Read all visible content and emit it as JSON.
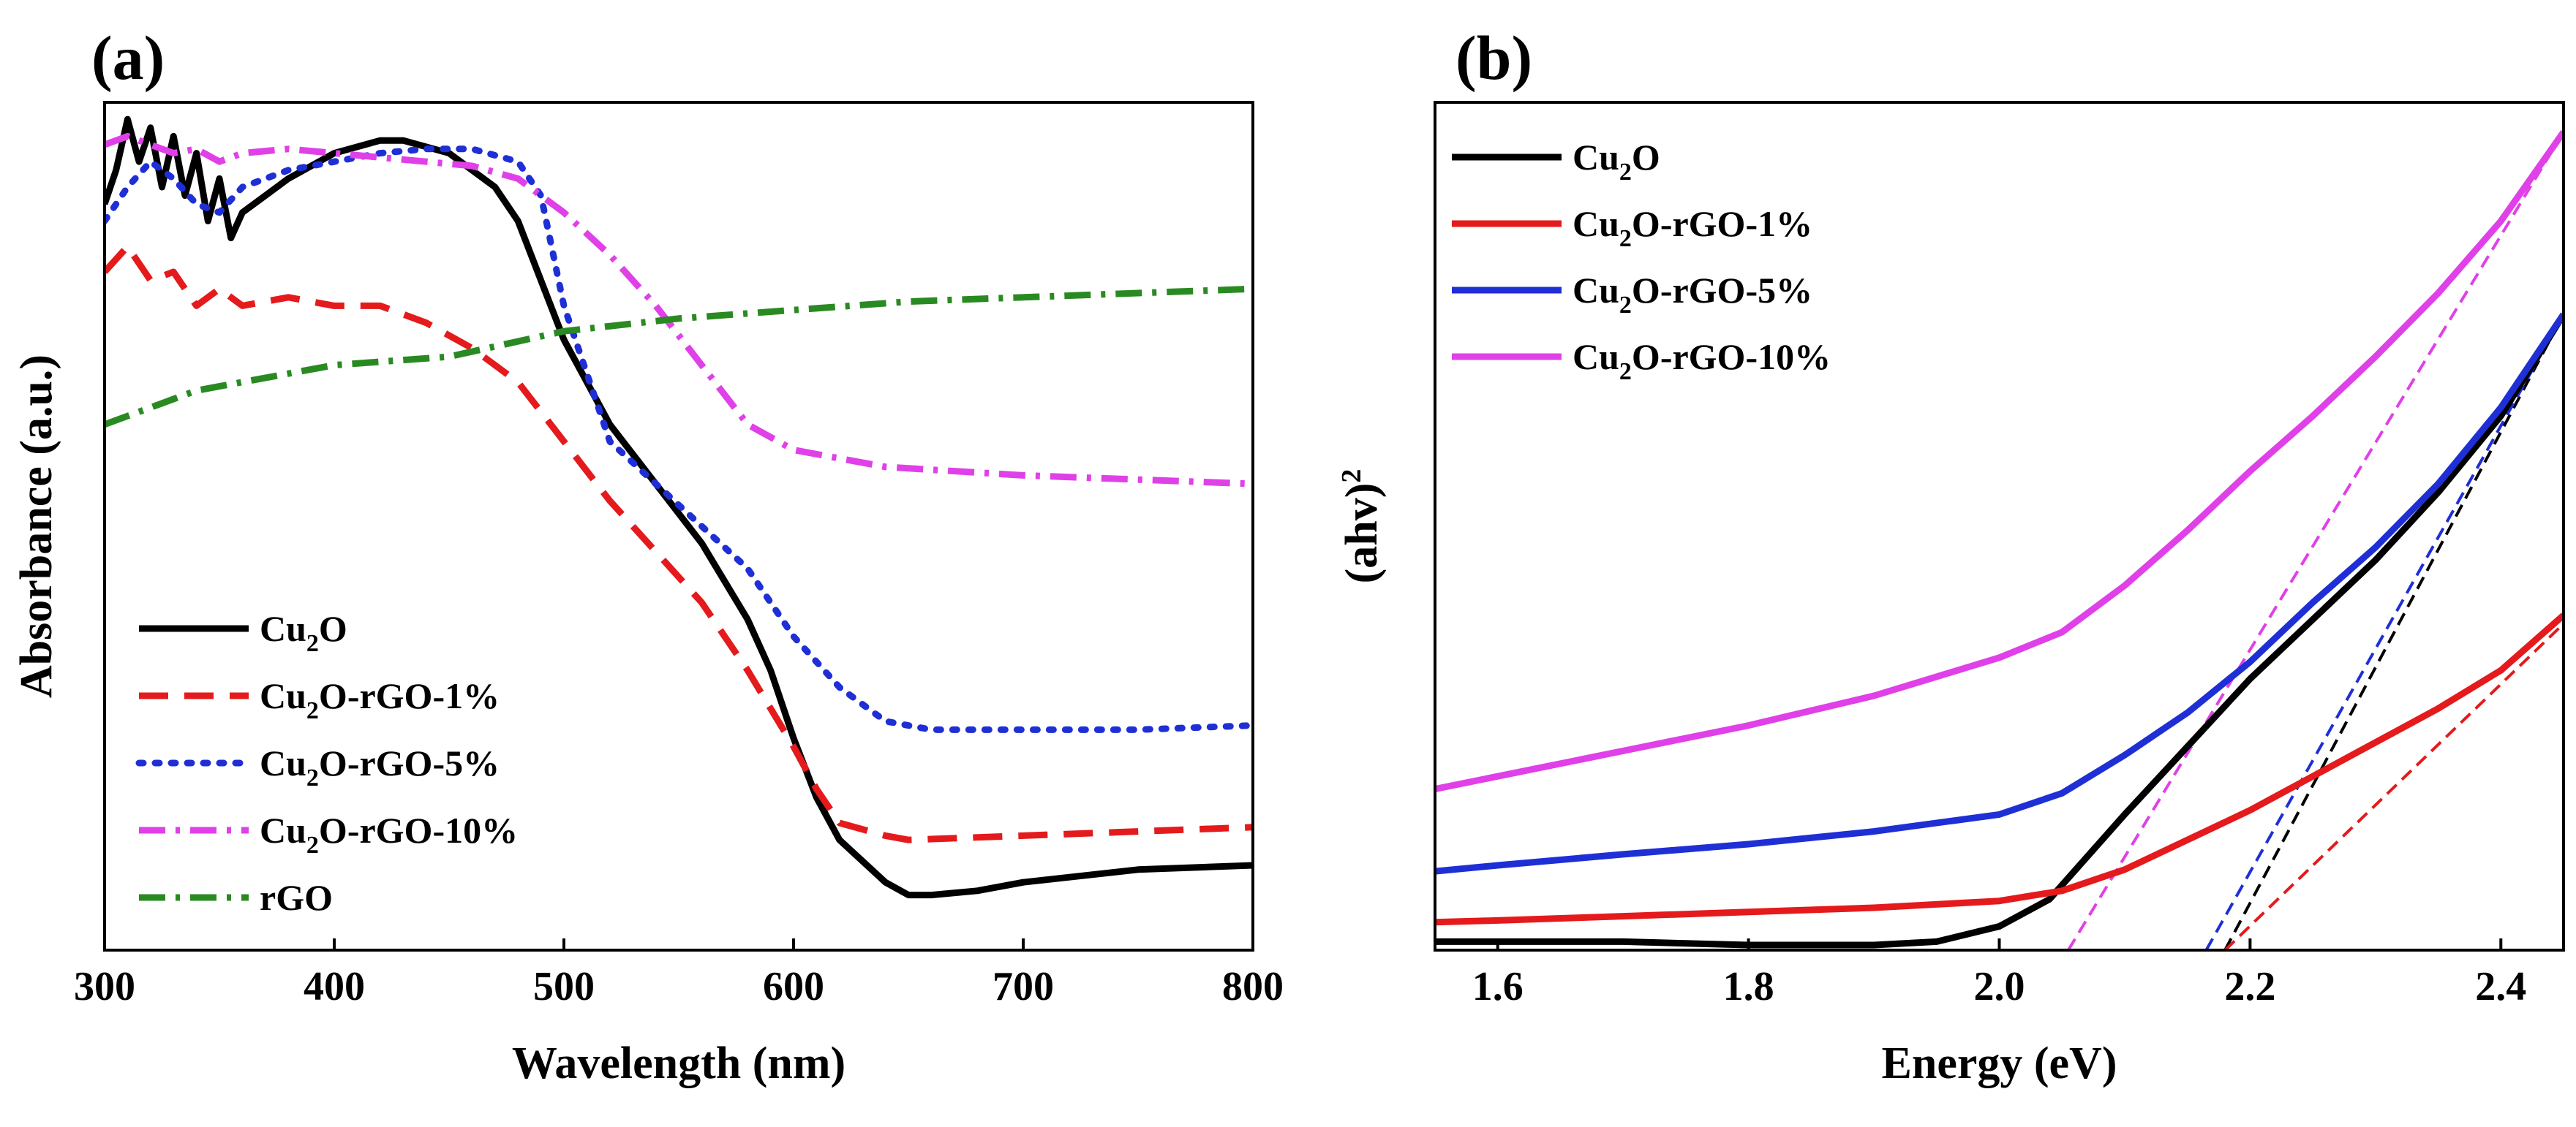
{
  "chart_data": [
    {
      "panel": "(a)",
      "type": "line",
      "title": "",
      "xlabel": "Wavelength (nm)",
      "ylabel": "Absorbance (a.u.)",
      "xlim": [
        300,
        800
      ],
      "ylim": [
        0,
        1
      ],
      "xticks": [
        "300",
        "400",
        "500",
        "600",
        "700",
        "800"
      ],
      "y_tick_labels_shown": false,
      "legend_position": "lower-left",
      "series": [
        {
          "name": "Cu2O",
          "label": {
            "main": "Cu",
            "sub": "2",
            "rest": "O"
          },
          "color": "#000000",
          "style": "solid",
          "x": [
            300,
            305,
            310,
            315,
            320,
            325,
            330,
            335,
            340,
            345,
            350,
            355,
            360,
            370,
            380,
            400,
            420,
            430,
            450,
            470,
            480,
            490,
            500,
            520,
            540,
            560,
            580,
            590,
            600,
            610,
            620,
            640,
            650,
            660,
            680,
            700,
            750,
            800
          ],
          "y": [
            0.88,
            0.92,
            0.98,
            0.93,
            0.97,
            0.9,
            0.96,
            0.89,
            0.94,
            0.86,
            0.91,
            0.84,
            0.87,
            0.89,
            0.91,
            0.94,
            0.955,
            0.955,
            0.94,
            0.9,
            0.86,
            0.79,
            0.72,
            0.62,
            0.55,
            0.48,
            0.39,
            0.33,
            0.25,
            0.18,
            0.13,
            0.08,
            0.065,
            0.065,
            0.07,
            0.08,
            0.095,
            0.1
          ]
        },
        {
          "name": "Cu2O-rGO-1%",
          "label": {
            "main": "Cu",
            "sub": "2",
            "rest": "O-rGO-1%"
          },
          "color": "#e41a1c",
          "style": "dashed",
          "x": [
            300,
            310,
            320,
            330,
            340,
            350,
            360,
            380,
            400,
            420,
            440,
            460,
            480,
            500,
            520,
            540,
            560,
            580,
            600,
            610,
            620,
            640,
            650,
            700,
            750,
            800
          ],
          "y": [
            0.8,
            0.83,
            0.79,
            0.8,
            0.76,
            0.78,
            0.76,
            0.77,
            0.76,
            0.76,
            0.74,
            0.71,
            0.67,
            0.6,
            0.53,
            0.47,
            0.41,
            0.33,
            0.24,
            0.19,
            0.15,
            0.135,
            0.13,
            0.135,
            0.14,
            0.145
          ]
        },
        {
          "name": "Cu2O-rGO-5%",
          "label": {
            "main": "Cu",
            "sub": "2",
            "rest": "O-rGO-5%"
          },
          "color": "#1f2fd6",
          "style": "dotted",
          "x": [
            300,
            310,
            320,
            330,
            340,
            350,
            360,
            380,
            400,
            420,
            440,
            460,
            480,
            490,
            500,
            520,
            540,
            560,
            580,
            600,
            620,
            640,
            660,
            700,
            750,
            800
          ],
          "y": [
            0.86,
            0.9,
            0.93,
            0.91,
            0.88,
            0.87,
            0.9,
            0.92,
            0.93,
            0.94,
            0.945,
            0.945,
            0.93,
            0.89,
            0.76,
            0.6,
            0.55,
            0.5,
            0.45,
            0.37,
            0.31,
            0.27,
            0.26,
            0.26,
            0.26,
            0.265
          ]
        },
        {
          "name": "Cu2O-rGO-10%",
          "label": {
            "main": "Cu",
            "sub": "2",
            "rest": "O-rGO-10%"
          },
          "color": "#e040e8",
          "style": "dash-dot",
          "x": [
            300,
            310,
            320,
            330,
            340,
            350,
            360,
            380,
            400,
            420,
            440,
            460,
            480,
            500,
            520,
            540,
            560,
            580,
            600,
            620,
            640,
            700,
            750,
            800
          ],
          "y": [
            0.95,
            0.96,
            0.95,
            0.94,
            0.945,
            0.93,
            0.94,
            0.945,
            0.94,
            0.935,
            0.93,
            0.925,
            0.91,
            0.87,
            0.82,
            0.76,
            0.69,
            0.62,
            0.59,
            0.58,
            0.57,
            0.56,
            0.555,
            0.55
          ]
        },
        {
          "name": "rGO",
          "label": {
            "main": "rGO",
            "sub": "",
            "rest": ""
          },
          "color": "#2a8a22",
          "style": "dash-dot",
          "x": [
            300,
            310,
            320,
            330,
            340,
            350,
            360,
            380,
            400,
            450,
            500,
            550,
            600,
            650,
            700,
            750,
            800
          ],
          "y": [
            0.62,
            0.63,
            0.64,
            0.65,
            0.66,
            0.665,
            0.67,
            0.68,
            0.69,
            0.7,
            0.73,
            0.745,
            0.755,
            0.765,
            0.77,
            0.775,
            0.78
          ]
        }
      ]
    },
    {
      "panel": "(b)",
      "type": "line",
      "title": "",
      "xlabel": "Energy (eV)",
      "ylabel": {
        "main": "(ahv)",
        "sup": "2"
      },
      "xlim": [
        1.55,
        2.45
      ],
      "ylim": [
        0,
        1
      ],
      "xticks": [
        "1.6",
        "1.8",
        "2.0",
        "2.2",
        "2.4"
      ],
      "y_tick_labels_shown": false,
      "legend_position": "top-left",
      "series": [
        {
          "name": "Cu2O",
          "label": {
            "main": "Cu",
            "sub": "2",
            "rest": "O"
          },
          "color": "#000000",
          "style": "solid",
          "x": [
            1.55,
            1.7,
            1.8,
            1.9,
            1.95,
            2.0,
            2.04,
            2.07,
            2.1,
            2.15,
            2.2,
            2.25,
            2.3,
            2.35,
            2.4,
            2.45
          ],
          "y": [
            0.01,
            0.01,
            0.006,
            0.006,
            0.01,
            0.028,
            0.06,
            0.11,
            0.16,
            0.24,
            0.32,
            0.39,
            0.46,
            0.54,
            0.63,
            0.75
          ]
        },
        {
          "name": "Cu2O-rGO-1%",
          "label": {
            "main": "Cu",
            "sub": "2",
            "rest": "O-rGO-1%"
          },
          "color": "#e41a1c",
          "style": "solid",
          "x": [
            1.55,
            1.6,
            1.7,
            1.8,
            1.9,
            2.0,
            2.05,
            2.1,
            2.15,
            2.2,
            2.25,
            2.3,
            2.35,
            2.4,
            2.45
          ],
          "y": [
            0.033,
            0.035,
            0.04,
            0.045,
            0.05,
            0.058,
            0.07,
            0.095,
            0.13,
            0.165,
            0.205,
            0.245,
            0.285,
            0.33,
            0.395
          ]
        },
        {
          "name": "Cu2O-rGO-5%",
          "label": {
            "main": "Cu",
            "sub": "2",
            "rest": "O-rGO-5%"
          },
          "color": "#1f2fd6",
          "style": "solid",
          "x": [
            1.55,
            1.6,
            1.7,
            1.8,
            1.9,
            2.0,
            2.05,
            2.1,
            2.15,
            2.2,
            2.25,
            2.3,
            2.35,
            2.4,
            2.45
          ],
          "y": [
            0.093,
            0.1,
            0.113,
            0.125,
            0.14,
            0.16,
            0.185,
            0.23,
            0.28,
            0.34,
            0.41,
            0.475,
            0.55,
            0.64,
            0.75
          ]
        },
        {
          "name": "Cu2O-rGO-10%",
          "label": {
            "main": "Cu",
            "sub": "2",
            "rest": "O-rGO-10%"
          },
          "color": "#e040e8",
          "style": "solid",
          "x": [
            1.55,
            1.6,
            1.7,
            1.8,
            1.9,
            2.0,
            2.05,
            2.1,
            2.15,
            2.2,
            2.25,
            2.3,
            2.35,
            2.4,
            2.45
          ],
          "y": [
            0.19,
            0.205,
            0.235,
            0.265,
            0.3,
            0.345,
            0.375,
            0.43,
            0.495,
            0.565,
            0.63,
            0.7,
            0.775,
            0.86,
            0.965
          ]
        }
      ],
      "tangent_lines": [
        {
          "series": "Cu2O",
          "color": "#000000",
          "x": [
            2.18,
            2.45
          ],
          "y": [
            0.0,
            0.75
          ]
        },
        {
          "series": "Cu2O-rGO-1%",
          "color": "#e41a1c",
          "x": [
            2.18,
            2.45
          ],
          "y": [
            0.0,
            0.385
          ]
        },
        {
          "series": "Cu2O-rGO-5%",
          "color": "#1f2fd6",
          "x": [
            2.165,
            2.45
          ],
          "y": [
            0.0,
            0.75
          ]
        },
        {
          "series": "Cu2O-rGO-10%",
          "color": "#e040e8",
          "x": [
            2.055,
            2.45
          ],
          "y": [
            0.0,
            0.965
          ]
        }
      ]
    }
  ]
}
